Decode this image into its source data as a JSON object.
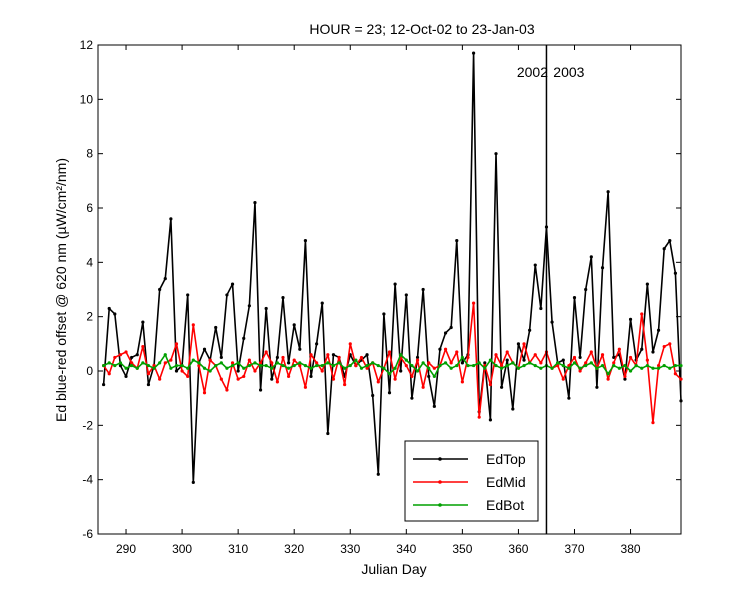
{
  "chart_data": {
    "type": "line",
    "title": "HOUR = 23; 12-Oct-02 to 23-Jan-03",
    "xlabel": "Julian Day",
    "ylabel": "Ed blue-red offset @ 620 nm (µW/cm²/nm)",
    "xlim": [
      285,
      389
    ],
    "ylim": [
      -6,
      12
    ],
    "xticks": [
      290,
      300,
      310,
      320,
      330,
      340,
      350,
      360,
      370,
      380
    ],
    "yticks": [
      -6,
      -4,
      -2,
      0,
      2,
      4,
      6,
      8,
      10,
      12
    ],
    "grid": false,
    "legend_position": "bottom-right",
    "annotations": [
      {
        "text": "2002",
        "x": 362.5,
        "y": 11
      },
      {
        "text": "2003",
        "x": 369,
        "y": 11
      }
    ],
    "vline": {
      "x": 365,
      "color": "#000000"
    },
    "x": [
      286,
      287,
      288,
      289,
      290,
      291,
      292,
      293,
      294,
      295,
      296,
      297,
      298,
      299,
      300,
      301,
      302,
      303,
      304,
      305,
      306,
      307,
      308,
      309,
      310,
      311,
      312,
      313,
      314,
      315,
      316,
      317,
      318,
      319,
      320,
      321,
      322,
      323,
      324,
      325,
      326,
      327,
      328,
      329,
      330,
      331,
      332,
      333,
      334,
      335,
      336,
      337,
      338,
      339,
      340,
      341,
      342,
      343,
      344,
      345,
      346,
      347,
      348,
      349,
      350,
      351,
      352,
      353,
      354,
      355,
      356,
      357,
      358,
      359,
      360,
      361,
      362,
      363,
      364,
      365,
      366,
      367,
      368,
      369,
      370,
      371,
      372,
      373,
      374,
      375,
      376,
      377,
      378,
      379,
      380,
      381,
      382,
      383,
      384,
      385,
      386,
      387,
      388,
      389
    ],
    "series": [
      {
        "name": "EdTop",
        "color": "#000000",
        "values": [
          -0.5,
          2.3,
          2.1,
          0.2,
          -0.2,
          0.5,
          0.6,
          1.8,
          -0.5,
          0.2,
          3.0,
          3.4,
          5.6,
          0.0,
          0.2,
          2.8,
          -4.1,
          0.3,
          0.8,
          0.4,
          1.6,
          0.5,
          2.8,
          3.2,
          0.0,
          1.2,
          2.4,
          6.2,
          -0.7,
          2.3,
          -0.3,
          0.5,
          2.7,
          0.3,
          1.7,
          0.8,
          4.8,
          -0.2,
          1.0,
          2.5,
          -2.3,
          0.6,
          0.5,
          -0.2,
          0.6,
          0.2,
          0.4,
          0.6,
          -0.9,
          -3.8,
          2.1,
          -0.8,
          3.2,
          0.0,
          2.8,
          -1.0,
          0.5,
          3.0,
          -0.2,
          -1.3,
          0.8,
          1.4,
          1.6,
          4.8,
          0.3,
          0.6,
          11.7,
          -1.5,
          0.3,
          -1.8,
          8.0,
          -0.6,
          0.4,
          -1.4,
          1.0,
          0.4,
          1.5,
          3.9,
          2.3,
          5.3,
          1.8,
          0.3,
          0.4,
          -1.0,
          2.7,
          0.5,
          3.0,
          4.2,
          -0.6,
          3.8,
          6.6,
          0.5,
          0.6,
          -0.3,
          1.9,
          0.4,
          0.8,
          3.2,
          0.7,
          1.5,
          4.5,
          4.8,
          3.6,
          -1.1
        ]
      },
      {
        "name": "EdMid",
        "color": "#ff0000",
        "values": [
          0.2,
          -0.1,
          0.5,
          0.6,
          0.7,
          0.3,
          0.1,
          0.9,
          -0.1,
          0.2,
          -0.3,
          0.3,
          0.4,
          1.0,
          0.0,
          -0.2,
          1.7,
          0.2,
          -0.8,
          0.4,
          0.2,
          -0.3,
          -0.7,
          0.3,
          -0.3,
          -0.2,
          0.4,
          0.0,
          0.3,
          0.7,
          0.3,
          -0.4,
          0.5,
          -0.2,
          0.4,
          0.2,
          -0.6,
          0.6,
          0.3,
          0.0,
          0.6,
          -0.3,
          0.5,
          -0.5,
          1.0,
          0.2,
          0.5,
          0.1,
          0.3,
          -0.4,
          0.1,
          0.7,
          -0.3,
          0.5,
          0.2,
          -0.2,
          0.4,
          -0.6,
          0.3,
          0.1,
          0.2,
          0.8,
          0.3,
          0.7,
          -0.4,
          0.5,
          2.5,
          -1.7,
          0.2,
          -0.5,
          0.6,
          0.2,
          0.7,
          0.3,
          0.1,
          1.0,
          0.3,
          0.6,
          0.3,
          0.7,
          0.1,
          0.2,
          -0.3,
          0.2,
          0.5,
          0.0,
          0.3,
          0.7,
          0.1,
          0.6,
          -0.3,
          0.3,
          0.8,
          -0.2,
          0.5,
          0.2,
          2.1,
          0.4,
          -1.9,
          0.2,
          0.9,
          1.0,
          -0.1,
          -0.3
        ]
      },
      {
        "name": "EdBot",
        "color": "#00a000",
        "values": [
          0.2,
          0.3,
          0.2,
          0.3,
          0.1,
          0.2,
          0.1,
          0.3,
          0.2,
          0.1,
          0.3,
          0.6,
          0.1,
          0.2,
          0.2,
          0.1,
          0.4,
          0.3,
          0.1,
          0.0,
          0.2,
          0.3,
          0.1,
          0.2,
          0.3,
          0.1,
          0.2,
          0.3,
          0.2,
          0.2,
          0.1,
          0.3,
          0.2,
          0.1,
          0.2,
          0.3,
          0.2,
          0.1,
          0.2,
          0.2,
          0.3,
          0.2,
          0.3,
          0.1,
          0.2,
          0.4,
          0.1,
          0.2,
          0.3,
          0.2,
          0.1,
          -0.1,
          0.1,
          0.6,
          0.4,
          0.2,
          0.0,
          0.3,
          0.1,
          -0.2,
          0.2,
          0.3,
          0.1,
          0.2,
          0.5,
          0.2,
          0.2,
          0.3,
          0.1,
          0.4,
          0.2,
          0.1,
          0.2,
          0.3,
          0.1,
          0.2,
          0.3,
          0.2,
          0.1,
          0.2,
          0.1,
          0.3,
          0.2,
          0.1,
          0.3,
          0.1,
          0.2,
          0.3,
          0.1,
          0.2,
          -0.1,
          0.2,
          0.1,
          0.2,
          0.0,
          0.2,
          0.1,
          0.2,
          0.1,
          0.1,
          0.2,
          0.1,
          0.2,
          0.2
        ]
      }
    ]
  }
}
